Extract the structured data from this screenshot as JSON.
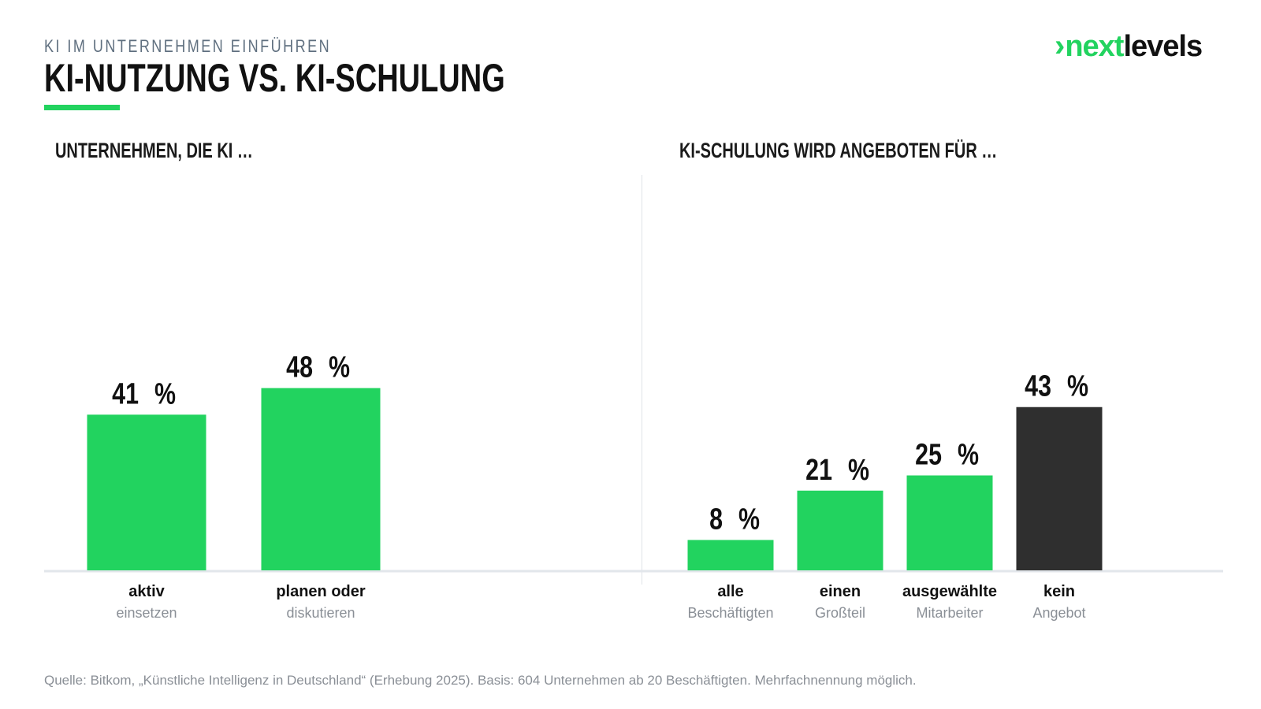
{
  "header": {
    "kicker": "KI IM UNTERNEHMEN EINFÜHREN",
    "title": "KI-NUTZUNG VS. KI-SCHULUNG"
  },
  "logo": {
    "chevron": "›",
    "part1": "next",
    "part2": "levels"
  },
  "colors": {
    "accent": "#22d35f",
    "dark_bar": "#2f2f2f",
    "baseline": "#e2e6eb"
  },
  "chart_data": [
    {
      "type": "bar",
      "title": "UNTERNEHMEN, DIE KI …",
      "unit": "%",
      "categories": [
        {
          "label": "aktiv",
          "sublabel": "einsetzen"
        },
        {
          "label": "planen oder",
          "sublabel": "diskutieren"
        }
      ],
      "values": [
        41,
        48
      ],
      "colors": [
        "#22d35f",
        "#22d35f"
      ]
    },
    {
      "type": "bar",
      "title": "KI-SCHULUNG WIRD ANGEBOTEN FÜR …",
      "unit": "%",
      "categories": [
        {
          "label": "alle",
          "sublabel": "Beschäftigten"
        },
        {
          "label": "einen",
          "sublabel": "Großteil"
        },
        {
          "label": "ausgewählte",
          "sublabel": "Mitarbeiter"
        },
        {
          "label": "kein",
          "sublabel": "Angebot"
        }
      ],
      "values": [
        8,
        21,
        25,
        43
      ],
      "colors": [
        "#22d35f",
        "#22d35f",
        "#22d35f",
        "#2f2f2f"
      ]
    }
  ],
  "footer": {
    "source": "Quelle: Bitkom, „Künstliche Intelligenz in Deutschland“ (Erhebung 2025). Basis: 604 Unternehmen ab 20 Beschäftigten. Mehrfachnennung möglich."
  }
}
